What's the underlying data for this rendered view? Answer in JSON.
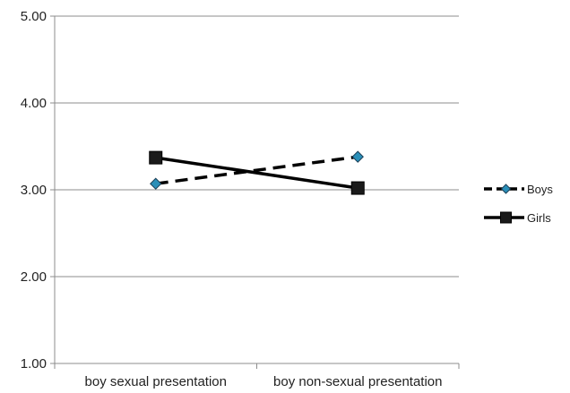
{
  "chart_data": {
    "type": "line",
    "categories": [
      "boy sexual presentation",
      "boy non-sexual presentation"
    ],
    "ylim": [
      1.0,
      5.0
    ],
    "yticks": [
      "1.00",
      "2.00",
      "3.00",
      "4.00",
      "5.00"
    ],
    "grid": true,
    "legend_position": "right",
    "series": [
      {
        "name": "Boys",
        "values": [
          3.07,
          3.38
        ],
        "line_style": "dashed",
        "marker": "diamond",
        "line_color": "#000000",
        "marker_color": "#2a8fb8"
      },
      {
        "name": "Girls",
        "values": [
          3.37,
          3.02
        ],
        "line_style": "solid",
        "marker": "square",
        "line_color": "#000000",
        "marker_color": "#1a1a1a"
      }
    ]
  }
}
